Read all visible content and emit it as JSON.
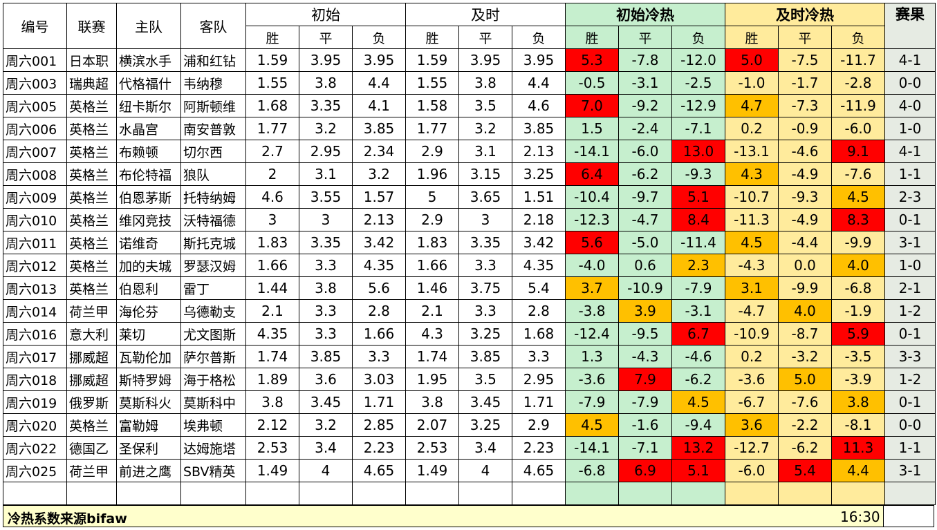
{
  "header": {
    "id": "编号",
    "league": "联赛",
    "home": "主队",
    "away": "客队",
    "initial": "初始",
    "live": "及时",
    "initial_heat": "初始冷热",
    "live_heat": "及时冷热",
    "result": "赛果",
    "win": "胜",
    "draw": "平",
    "loss": "负"
  },
  "colors": {
    "red": "#ff0000",
    "orange": "#ffc000",
    "green": "#c6efce",
    "yellow": "#ffeb9c"
  },
  "rows": [
    {
      "id": "周六001",
      "league": "日本职",
      "home": "横滨水手",
      "away": "浦和红钻",
      "init": [
        "1.59",
        "3.95",
        "3.95"
      ],
      "live": [
        "1.59",
        "3.95",
        "3.95"
      ],
      "iheat": [
        "5.3",
        "-7.8",
        "-12.0"
      ],
      "ic": [
        "red",
        "green",
        "green"
      ],
      "lheat": [
        "5.0",
        "-7.5",
        "-11.7"
      ],
      "lc": [
        "red",
        "yellow",
        "yellow"
      ],
      "result": "4-1"
    },
    {
      "id": "周六003",
      "league": "瑞典超",
      "home": "代格福什",
      "away": "韦纳穆",
      "init": [
        "1.55",
        "3.8",
        "4.4"
      ],
      "live": [
        "1.55",
        "3.8",
        "4.4"
      ],
      "iheat": [
        "-0.5",
        "-3.1",
        "-2.5"
      ],
      "ic": [
        "green",
        "green",
        "green"
      ],
      "lheat": [
        "-1.0",
        "-1.7",
        "-2.8"
      ],
      "lc": [
        "yellow",
        "yellow",
        "yellow"
      ],
      "result": "0-0"
    },
    {
      "id": "周六005",
      "league": "英格兰",
      "home": "纽卡斯尔",
      "away": "阿斯顿维",
      "init": [
        "1.68",
        "3.35",
        "4.1"
      ],
      "live": [
        "1.58",
        "3.5",
        "4.6"
      ],
      "iheat": [
        "7.0",
        "-9.2",
        "-12.9"
      ],
      "ic": [
        "red",
        "green",
        "green"
      ],
      "lheat": [
        "4.7",
        "-7.3",
        "-11.9"
      ],
      "lc": [
        "orange",
        "yellow",
        "yellow"
      ],
      "result": "4-0"
    },
    {
      "id": "周六006",
      "league": "英格兰",
      "home": "水晶宫",
      "away": "南安普敦",
      "init": [
        "1.77",
        "3.2",
        "3.85"
      ],
      "live": [
        "1.77",
        "3.2",
        "3.85"
      ],
      "iheat": [
        "1.5",
        "-2.4",
        "-7.1"
      ],
      "ic": [
        "green",
        "green",
        "green"
      ],
      "lheat": [
        "0.2",
        "-0.9",
        "-6.0"
      ],
      "lc": [
        "yellow",
        "yellow",
        "yellow"
      ],
      "result": "1-0"
    },
    {
      "id": "周六007",
      "league": "英格兰",
      "home": "布赖顿",
      "away": "切尔西",
      "init": [
        "2.7",
        "2.95",
        "2.34"
      ],
      "live": [
        "2.9",
        "3.1",
        "2.13"
      ],
      "iheat": [
        "-14.1",
        "-6.0",
        "13.0"
      ],
      "ic": [
        "green",
        "green",
        "red"
      ],
      "lheat": [
        "-13.1",
        "-4.6",
        "9.1"
      ],
      "lc": [
        "yellow",
        "yellow",
        "red"
      ],
      "result": "4-1"
    },
    {
      "id": "周六008",
      "league": "英格兰",
      "home": "布伦特福",
      "away": "狼队",
      "init": [
        "2",
        "3.1",
        "3.2"
      ],
      "live": [
        "1.96",
        "3.15",
        "3.25"
      ],
      "iheat": [
        "6.4",
        "-6.2",
        "-9.3"
      ],
      "ic": [
        "red",
        "green",
        "green"
      ],
      "lheat": [
        "4.3",
        "-4.9",
        "-7.6"
      ],
      "lc": [
        "orange",
        "yellow",
        "yellow"
      ],
      "result": "1-1"
    },
    {
      "id": "周六009",
      "league": "英格兰",
      "home": "伯恩茅斯",
      "away": "托特纳姆",
      "init": [
        "4.6",
        "3.55",
        "1.57"
      ],
      "live": [
        "5",
        "3.65",
        "1.51"
      ],
      "iheat": [
        "-10.4",
        "-9.7",
        "5.1"
      ],
      "ic": [
        "green",
        "green",
        "red"
      ],
      "lheat": [
        "-10.7",
        "-9.3",
        "4.5"
      ],
      "lc": [
        "yellow",
        "yellow",
        "orange"
      ],
      "result": "2-3"
    },
    {
      "id": "周六010",
      "league": "英格兰",
      "home": "维冈竞技",
      "away": "沃特福德",
      "init": [
        "3",
        "3",
        "2.13"
      ],
      "live": [
        "2.9",
        "3",
        "2.18"
      ],
      "iheat": [
        "-12.3",
        "-4.7",
        "8.4"
      ],
      "ic": [
        "green",
        "green",
        "red"
      ],
      "lheat": [
        "-11.3",
        "-4.9",
        "8.3"
      ],
      "lc": [
        "yellow",
        "yellow",
        "red"
      ],
      "result": "0-1"
    },
    {
      "id": "周六011",
      "league": "英格兰",
      "home": "诺维奇",
      "away": "斯托克城",
      "init": [
        "1.83",
        "3.35",
        "3.42"
      ],
      "live": [
        "1.83",
        "3.35",
        "3.42"
      ],
      "iheat": [
        "5.6",
        "-5.0",
        "-11.4"
      ],
      "ic": [
        "red",
        "green",
        "green"
      ],
      "lheat": [
        "4.5",
        "-4.4",
        "-9.9"
      ],
      "lc": [
        "orange",
        "yellow",
        "yellow"
      ],
      "result": "3-1"
    },
    {
      "id": "周六012",
      "league": "英格兰",
      "home": "加的夫城",
      "away": "罗瑟汉姆",
      "init": [
        "1.66",
        "3.3",
        "4.35"
      ],
      "live": [
        "1.66",
        "3.3",
        "4.35"
      ],
      "iheat": [
        "-4.0",
        "0.6",
        "2.3"
      ],
      "ic": [
        "green",
        "green",
        "orange"
      ],
      "lheat": [
        "-4.3",
        "0.0",
        "4.0"
      ],
      "lc": [
        "yellow",
        "yellow",
        "orange"
      ],
      "result": "1-0"
    },
    {
      "id": "周六013",
      "league": "英格兰",
      "home": "伯恩利",
      "away": "雷丁",
      "init": [
        "1.44",
        "3.8",
        "5.6"
      ],
      "live": [
        "1.46",
        "3.75",
        "5.4"
      ],
      "iheat": [
        "3.7",
        "-10.9",
        "-7.9"
      ],
      "ic": [
        "orange",
        "green",
        "green"
      ],
      "lheat": [
        "3.1",
        "-9.9",
        "-6.8"
      ],
      "lc": [
        "orange",
        "yellow",
        "yellow"
      ],
      "result": "2-1"
    },
    {
      "id": "周六014",
      "league": "荷兰甲",
      "home": "海伦芬",
      "away": "乌德勒支",
      "init": [
        "2.1",
        "3.3",
        "2.8"
      ],
      "live": [
        "2.1",
        "3.3",
        "2.8"
      ],
      "iheat": [
        "-3.8",
        "3.9",
        "-3.1"
      ],
      "ic": [
        "green",
        "orange",
        "green"
      ],
      "lheat": [
        "-4.7",
        "4.0",
        "-1.9"
      ],
      "lc": [
        "yellow",
        "orange",
        "yellow"
      ],
      "result": "1-2"
    },
    {
      "id": "周六016",
      "league": "意大利",
      "home": "莱切",
      "away": "尤文图斯",
      "init": [
        "4.35",
        "3.3",
        "1.66"
      ],
      "live": [
        "4.3",
        "3.25",
        "1.68"
      ],
      "iheat": [
        "-12.4",
        "-9.5",
        "6.7"
      ],
      "ic": [
        "green",
        "green",
        "red"
      ],
      "lheat": [
        "-10.9",
        "-8.7",
        "5.9"
      ],
      "lc": [
        "yellow",
        "yellow",
        "red"
      ],
      "result": "0-1"
    },
    {
      "id": "周六017",
      "league": "挪威超",
      "home": "瓦勒伦加",
      "away": "萨尔普斯",
      "init": [
        "1.74",
        "3.85",
        "3.3"
      ],
      "live": [
        "1.74",
        "3.85",
        "3.3"
      ],
      "iheat": [
        "1.3",
        "-4.3",
        "-4.6"
      ],
      "ic": [
        "green",
        "green",
        "green"
      ],
      "lheat": [
        "0.2",
        "-3.2",
        "-3.5"
      ],
      "lc": [
        "yellow",
        "yellow",
        "yellow"
      ],
      "result": "3-3"
    },
    {
      "id": "周六018",
      "league": "挪威超",
      "home": "斯特罗姆",
      "away": "海于格松",
      "init": [
        "1.89",
        "3.6",
        "3.03"
      ],
      "live": [
        "1.95",
        "3.5",
        "2.95"
      ],
      "iheat": [
        "-3.6",
        "7.9",
        "-6.2"
      ],
      "ic": [
        "green",
        "red",
        "green"
      ],
      "lheat": [
        "-3.6",
        "5.0",
        "-3.9"
      ],
      "lc": [
        "yellow",
        "orange",
        "yellow"
      ],
      "result": "1-2"
    },
    {
      "id": "周六019",
      "league": "俄罗斯",
      "home": "莫斯科火",
      "away": "莫斯科中",
      "init": [
        "3.8",
        "3.45",
        "1.71"
      ],
      "live": [
        "3.8",
        "3.45",
        "1.71"
      ],
      "iheat": [
        "-7.9",
        "-7.9",
        "4.5"
      ],
      "ic": [
        "green",
        "green",
        "orange"
      ],
      "lheat": [
        "-6.7",
        "-7.6",
        "3.8"
      ],
      "lc": [
        "yellow",
        "yellow",
        "orange"
      ],
      "result": "0-1"
    },
    {
      "id": "周六020",
      "league": "英格兰",
      "home": "富勒姆",
      "away": "埃弗顿",
      "init": [
        "2.12",
        "3.2",
        "2.85"
      ],
      "live": [
        "2.07",
        "3.25",
        "2.9"
      ],
      "iheat": [
        "4.5",
        "-1.6",
        "-9.4"
      ],
      "ic": [
        "orange",
        "green",
        "green"
      ],
      "lheat": [
        "3.6",
        "-2.2",
        "-8.1"
      ],
      "lc": [
        "orange",
        "yellow",
        "yellow"
      ],
      "result": "0-0"
    },
    {
      "id": "周六022",
      "league": "德国乙",
      "home": "圣保利",
      "away": "达姆施塔",
      "init": [
        "2.53",
        "3.4",
        "2.23"
      ],
      "live": [
        "2.53",
        "3.4",
        "2.23"
      ],
      "iheat": [
        "-14.1",
        "-7.1",
        "13.2"
      ],
      "ic": [
        "green",
        "green",
        "red"
      ],
      "lheat": [
        "-12.7",
        "-6.2",
        "11.3"
      ],
      "lc": [
        "yellow",
        "yellow",
        "red"
      ],
      "result": "1-1"
    },
    {
      "id": "周六025",
      "league": "荷兰甲",
      "home": "前进之鹰",
      "away": "SBV精英",
      "init": [
        "1.49",
        "4",
        "4.65"
      ],
      "live": [
        "1.49",
        "4",
        "4.65"
      ],
      "iheat": [
        "-6.8",
        "6.9",
        "5.1"
      ],
      "ic": [
        "green",
        "red",
        "red"
      ],
      "lheat": [
        "-6.0",
        "5.4",
        "4.4"
      ],
      "lc": [
        "yellow",
        "red",
        "orange"
      ],
      "result": "3-1"
    }
  ],
  "footer": {
    "note": "冷热系数来源bifaw",
    "time": "16:30"
  }
}
